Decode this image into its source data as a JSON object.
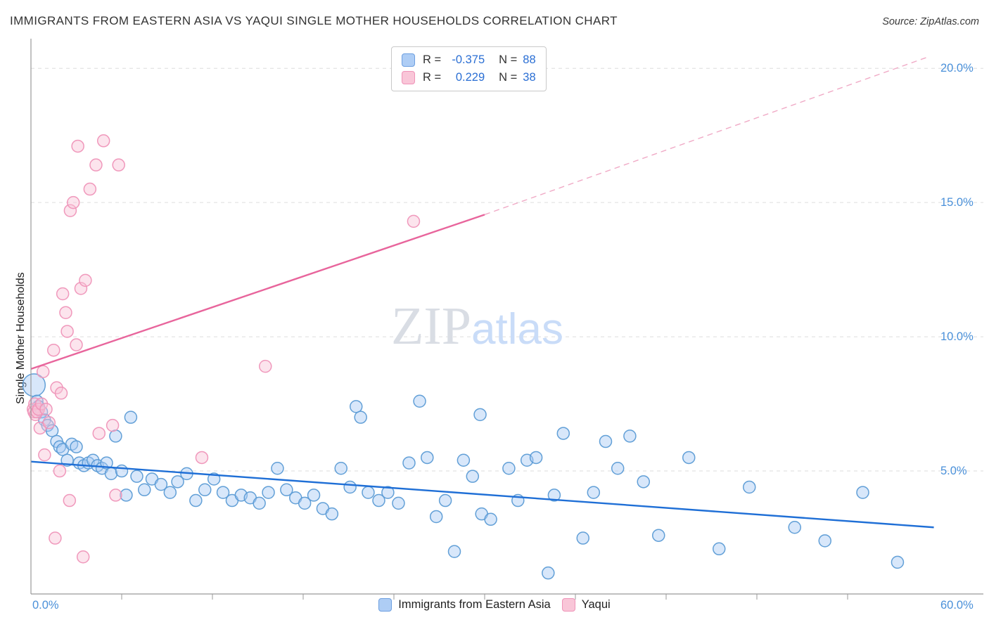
{
  "header": {
    "source": "Source: ZipAtlas.com"
  },
  "watermark": {
    "part1": "ZIP",
    "part2": "atlas"
  },
  "axes": {
    "y_ticks": [
      "20.0%",
      "15.0%",
      "10.0%",
      "5.0%"
    ],
    "x_tick_left": "0.0%",
    "x_tick_right": "60.0%"
  },
  "legend_box": {
    "r_label": "R =",
    "n_label": "N ="
  },
  "colors": {
    "blue_stroke": "#5b9bd5",
    "blue_fill": "#a9c9f4",
    "pink_stroke": "#ef93b8",
    "pink_fill": "#f9c3d6",
    "axis_label_blue": "#4a90d9",
    "value_blue": "#2b6fd4",
    "trend_blue": "#1f6fd6",
    "trend_pink": "#e8659c"
  },
  "chart_data": {
    "type": "scatter",
    "title": "IMMIGRANTS FROM EASTERN ASIA VS YAQUI SINGLE MOTHER HOUSEHOLDS CORRELATION CHART",
    "xlabel": "",
    "ylabel": "Single Mother Households",
    "xlim": [
      0,
      60
    ],
    "ylim": [
      0,
      21
    ],
    "x_tick_labels_shown": [
      "0.0%",
      "60.0%"
    ],
    "y_gridlines": [
      5,
      10,
      15,
      20
    ],
    "grid": true,
    "legend_position": "bottom-center",
    "series": [
      {
        "name": "Immigrants from Eastern Asia",
        "R_display": "-0.375",
        "N_display": "88",
        "R": -0.375,
        "N": 88,
        "color": "#5b9bd5",
        "fill": "#a9c9f4",
        "points": [
          [
            0.2,
            8.2,
            16
          ],
          [
            0.4,
            7.6
          ],
          [
            0.5,
            7.4
          ],
          [
            0.7,
            7.2
          ],
          [
            0.9,
            6.9
          ],
          [
            1.1,
            6.7
          ],
          [
            1.4,
            6.5
          ],
          [
            1.7,
            6.1
          ],
          [
            1.9,
            5.9
          ],
          [
            2.1,
            5.8
          ],
          [
            2.4,
            5.4
          ],
          [
            2.7,
            6.0
          ],
          [
            3.0,
            5.9
          ],
          [
            3.2,
            5.3
          ],
          [
            3.5,
            5.2
          ],
          [
            3.8,
            5.3
          ],
          [
            4.1,
            5.4
          ],
          [
            4.4,
            5.2
          ],
          [
            4.7,
            5.1
          ],
          [
            5.0,
            5.3
          ],
          [
            5.3,
            4.9
          ],
          [
            5.6,
            6.3
          ],
          [
            6.0,
            5.0
          ],
          [
            6.3,
            4.1
          ],
          [
            6.6,
            7.0
          ],
          [
            7.0,
            4.8
          ],
          [
            7.5,
            4.3
          ],
          [
            8.0,
            4.7
          ],
          [
            8.6,
            4.5
          ],
          [
            9.2,
            4.2
          ],
          [
            9.7,
            4.6
          ],
          [
            10.3,
            4.9
          ],
          [
            10.9,
            3.9
          ],
          [
            11.5,
            4.3
          ],
          [
            12.1,
            4.7
          ],
          [
            12.7,
            4.2
          ],
          [
            13.3,
            3.9
          ],
          [
            13.9,
            4.1
          ],
          [
            14.5,
            4.0
          ],
          [
            15.1,
            3.8
          ],
          [
            15.7,
            4.2
          ],
          [
            16.3,
            5.1
          ],
          [
            16.9,
            4.3
          ],
          [
            17.5,
            4.0
          ],
          [
            18.1,
            3.8
          ],
          [
            18.7,
            4.1
          ],
          [
            19.3,
            3.6
          ],
          [
            19.9,
            3.4
          ],
          [
            20.5,
            5.1
          ],
          [
            21.1,
            4.4
          ],
          [
            21.5,
            7.4
          ],
          [
            21.8,
            7.0
          ],
          [
            22.3,
            4.2
          ],
          [
            23.0,
            3.9
          ],
          [
            23.6,
            4.2
          ],
          [
            24.3,
            3.8
          ],
          [
            25.0,
            5.3
          ],
          [
            25.7,
            7.6
          ],
          [
            26.2,
            5.5
          ],
          [
            26.8,
            3.3
          ],
          [
            27.4,
            3.9
          ],
          [
            28.0,
            2.0
          ],
          [
            28.6,
            5.4
          ],
          [
            29.2,
            4.8
          ],
          [
            29.7,
            7.1
          ],
          [
            29.8,
            3.4
          ],
          [
            30.4,
            3.2
          ],
          [
            31.6,
            5.1
          ],
          [
            32.2,
            3.9
          ],
          [
            32.8,
            5.4
          ],
          [
            33.4,
            5.5
          ],
          [
            34.2,
            1.2
          ],
          [
            34.6,
            4.1
          ],
          [
            35.2,
            6.4
          ],
          [
            36.5,
            2.5
          ],
          [
            37.2,
            4.2
          ],
          [
            38.0,
            6.1
          ],
          [
            38.8,
            5.1
          ],
          [
            39.6,
            6.3
          ],
          [
            40.5,
            4.6
          ],
          [
            41.5,
            2.6
          ],
          [
            43.5,
            5.5
          ],
          [
            45.5,
            2.1
          ],
          [
            47.5,
            4.4
          ],
          [
            50.5,
            2.9
          ],
          [
            52.5,
            2.4
          ],
          [
            55.0,
            4.2
          ],
          [
            57.3,
            1.6
          ]
        ]
      },
      {
        "name": "Yaqui",
        "R_display": "0.229",
        "N_display": "38",
        "R": 0.229,
        "N": 38,
        "color": "#ef93b8",
        "fill": "#f9c3d6",
        "points": [
          [
            0.15,
            7.3
          ],
          [
            0.2,
            7.2
          ],
          [
            0.25,
            7.5
          ],
          [
            0.3,
            7.1
          ],
          [
            0.4,
            7.2
          ],
          [
            0.5,
            7.3
          ],
          [
            0.6,
            6.6
          ],
          [
            0.7,
            7.5
          ],
          [
            0.8,
            8.7
          ],
          [
            0.9,
            5.6
          ],
          [
            1.0,
            7.3
          ],
          [
            1.2,
            6.8
          ],
          [
            1.5,
            9.5
          ],
          [
            1.6,
            2.5
          ],
          [
            1.7,
            8.1
          ],
          [
            1.9,
            5.0
          ],
          [
            2.0,
            7.9
          ],
          [
            2.1,
            11.6
          ],
          [
            2.3,
            10.9
          ],
          [
            2.4,
            10.2
          ],
          [
            2.55,
            3.9
          ],
          [
            2.6,
            14.7
          ],
          [
            2.8,
            15.0
          ],
          [
            3.0,
            9.7
          ],
          [
            3.1,
            17.1
          ],
          [
            3.3,
            11.8
          ],
          [
            3.45,
            1.8
          ],
          [
            3.6,
            12.1
          ],
          [
            3.9,
            15.5
          ],
          [
            4.3,
            16.4
          ],
          [
            4.5,
            6.4
          ],
          [
            4.8,
            17.3
          ],
          [
            5.4,
            6.7
          ],
          [
            5.6,
            4.1
          ],
          [
            5.8,
            16.4
          ],
          [
            11.3,
            5.5
          ],
          [
            15.5,
            8.9
          ],
          [
            25.3,
            14.3
          ]
        ]
      }
    ],
    "trend_lines": [
      {
        "series": "Immigrants from Eastern Asia",
        "style": "solid",
        "color": "#1f6fd6",
        "x1": 0,
        "y1": 5.35,
        "x2": 59.7,
        "y2": 2.9
      },
      {
        "series": "Yaqui",
        "style": "solid",
        "color": "#e8659c",
        "x1": 0,
        "y1": 8.8,
        "x2": 30.0,
        "y2": 14.55
      },
      {
        "series": "Yaqui",
        "style": "dashed",
        "color": "#f0aac6",
        "x1": 30.0,
        "y1": 14.55,
        "x2": 59.2,
        "y2": 20.4
      }
    ]
  }
}
